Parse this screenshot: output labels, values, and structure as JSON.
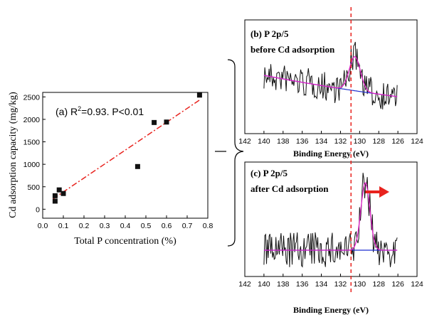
{
  "chart_data": [
    {
      "id": "a",
      "type": "scatter",
      "annotation": "(a) R²=0.93. P<0.01",
      "annotation_prefix": "(a) R",
      "annotation_sup": "2",
      "annotation_suffix": "=0.93. P<0.01",
      "xlabel": "Total P concentration (%)",
      "ylabel": "Cd adsorption capacity (mg/kg)",
      "xlim": [
        0.0,
        0.8
      ],
      "ylim": [
        -200,
        2600
      ],
      "xticks": [
        "0.0",
        "0.1",
        "0.2",
        "0.3",
        "0.4",
        "0.5",
        "0.6",
        "0.7",
        "0.8"
      ],
      "xtick_values": [
        0.0,
        0.1,
        0.2,
        0.3,
        0.4,
        0.5,
        0.6,
        0.7,
        0.8
      ],
      "yticks": [
        "0",
        "500",
        "1000",
        "1500",
        "2000",
        "2500"
      ],
      "ytick_values": [
        0,
        500,
        1000,
        1500,
        2000,
        2500
      ],
      "points": [
        {
          "x": 0.06,
          "y": 180
        },
        {
          "x": 0.06,
          "y": 300
        },
        {
          "x": 0.08,
          "y": 430
        },
        {
          "x": 0.1,
          "y": 350
        },
        {
          "x": 0.46,
          "y": 950
        },
        {
          "x": 0.54,
          "y": 1930
        },
        {
          "x": 0.6,
          "y": 1940
        },
        {
          "x": 0.76,
          "y": 2540
        }
      ],
      "fit_line": {
        "x": [
          0.05,
          0.76
        ],
        "y": [
          230,
          2430
        ],
        "color": "#e8231e"
      },
      "marker_color": "#111111"
    },
    {
      "id": "b",
      "type": "line",
      "title_line1": "(b) P 2p/5",
      "title_line2": "before Cd adsorption",
      "xlabel": "Binding Energy (eV)",
      "xlim": [
        142,
        124
      ],
      "xticks": [
        "142",
        "140",
        "138",
        "136",
        "134",
        "132",
        "130",
        "128",
        "126",
        "124"
      ],
      "xtick_values": [
        142,
        140,
        138,
        136,
        134,
        132,
        130,
        128,
        126,
        124
      ],
      "reference_line_x": 130.9,
      "series": [
        {
          "name": "spectrum",
          "color": "#111111"
        },
        {
          "name": "fit envelope",
          "color": "#e020c8"
        },
        {
          "name": "background",
          "color": "#1f2fd0"
        }
      ]
    },
    {
      "id": "c",
      "type": "line",
      "title_line1": "(c) P 2p/5",
      "title_line2": "after Cd adsorption",
      "xlabel": "Binding Energy (eV)",
      "xlim": [
        142,
        124
      ],
      "xticks": [
        "142",
        "140",
        "138",
        "136",
        "134",
        "132",
        "130",
        "128",
        "126",
        "124"
      ],
      "xtick_values": [
        142,
        140,
        138,
        136,
        134,
        132,
        130,
        128,
        126,
        124
      ],
      "reference_line_x": 130.9,
      "arrow": {
        "from": 129.4,
        "to": 127.2,
        "color": "#e8231e"
      },
      "series": [
        {
          "name": "spectrum",
          "color": "#111111"
        },
        {
          "name": "fit envelope",
          "color": "#e020c8"
        },
        {
          "name": "background",
          "color": "#1f2fd0"
        }
      ]
    }
  ]
}
